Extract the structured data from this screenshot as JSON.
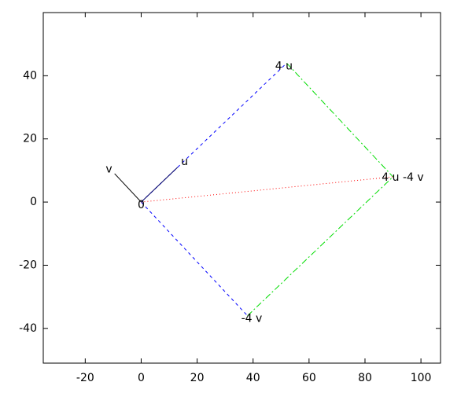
{
  "chart_data": {
    "type": "vector",
    "xlim": [
      -35,
      107
    ],
    "ylim": [
      -51,
      60
    ],
    "xticks": [
      -20,
      0,
      20,
      40,
      60,
      80,
      100
    ],
    "yticks": [
      -40,
      -20,
      0,
      20,
      40
    ],
    "segments": [
      {
        "x": [
          0,
          52
        ],
        "y": [
          0,
          44
        ],
        "color": "#0000ff",
        "dash": "4,4"
      },
      {
        "x": [
          0,
          38
        ],
        "y": [
          0,
          -36
        ],
        "color": "#0000ff",
        "dash": "4,4"
      },
      {
        "x": [
          52,
          90
        ],
        "y": [
          44,
          8
        ],
        "color": "#00dd00",
        "dash": "8,3,2,3"
      },
      {
        "x": [
          38,
          90
        ],
        "y": [
          -36,
          8
        ],
        "color": "#00dd00",
        "dash": "8,3,2,3"
      },
      {
        "x": [
          0,
          90
        ],
        "y": [
          0,
          8
        ],
        "color": "#ff0000",
        "dash": "1,3"
      },
      {
        "x": [
          0,
          13
        ],
        "y": [
          0,
          11
        ],
        "color": "#000066",
        "dash": "none"
      },
      {
        "x": [
          0,
          -9.5
        ],
        "y": [
          0,
          9
        ],
        "color": "#000000",
        "dash": "none"
      }
    ],
    "labels": [
      {
        "text": "0",
        "x": 0,
        "y": -1
      },
      {
        "text": "u",
        "x": 15.5,
        "y": 12.7
      },
      {
        "text": "v",
        "x": -11.5,
        "y": 10.4
      },
      {
        "text": "4 u",
        "x": 51,
        "y": 43
      },
      {
        "text": "-4 v",
        "x": 39.5,
        "y": -37
      },
      {
        "text": "4 u -4 v",
        "x": 93.5,
        "y": 7.7
      }
    ]
  }
}
